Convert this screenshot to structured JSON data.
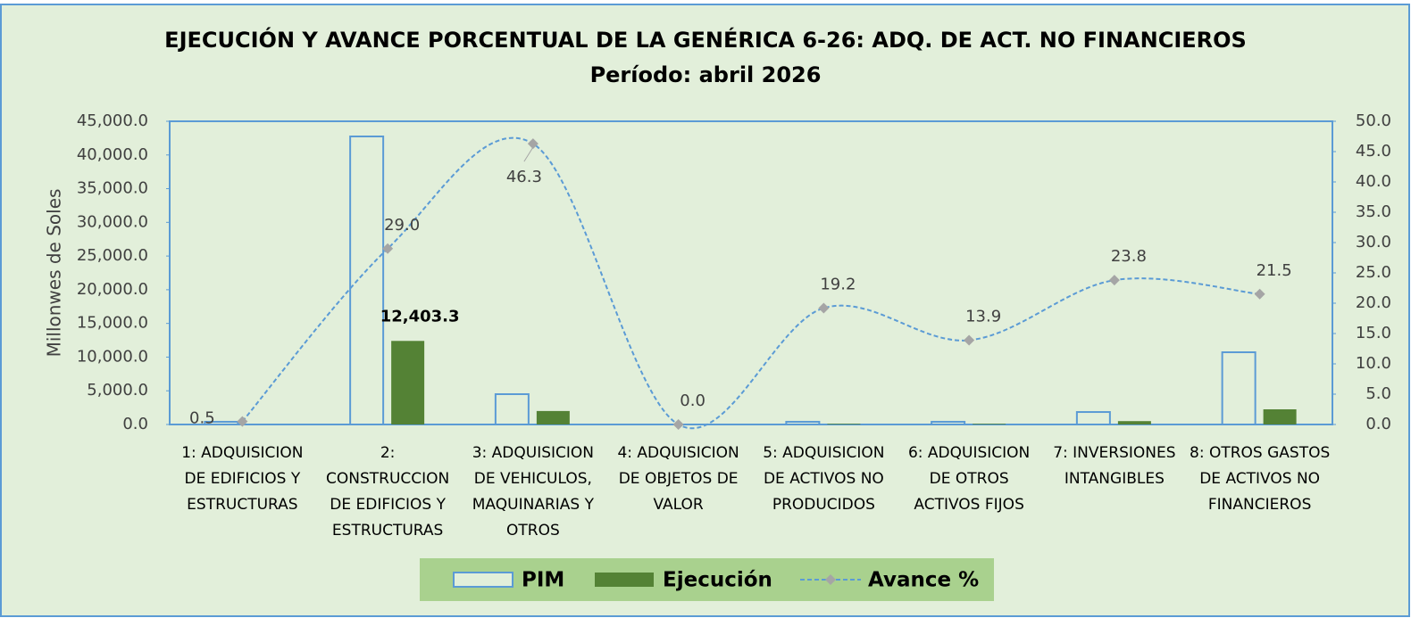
{
  "chart_data": {
    "type": "bar_line",
    "title": "EJECUCIÓN Y AVANCE PORCENTUAL DE LA GENÉRICA 6-26: ADQ. DE ACT. NO FINANCIEROS",
    "subtitle": "Período: abril 2026",
    "ylabel": "Millonwes de Soles",
    "categories": [
      "1: ADQUISICION DE EDIFICIOS Y ESTRUCTURAS",
      "2: CONSTRUCCION DE EDIFICIOS Y ESTRUCTURAS",
      "3: ADQUISICION DE VEHICULOS, MAQUINARIAS Y OTROS",
      "4: ADQUISICION DE OBJETOS DE VALOR",
      "5: ADQUISICION DE ACTIVOS NO PRODUCIDOS",
      "6: ADQUISICION DE OTROS ACTIVOS FIJOS",
      "7: INVERSIONES INTANGIBLES",
      "8: OTROS GASTOS DE ACTIVOS NO FINANCIEROS"
    ],
    "series": [
      {
        "name": "PIM",
        "type": "bar",
        "color": "#e2efda",
        "stroke": "#5b9bd5",
        "values": [
          400,
          42750,
          4500,
          0,
          400,
          400,
          1850,
          10720
        ]
      },
      {
        "name": "Ejecución",
        "type": "bar",
        "color": "#548235",
        "values": [
          2,
          12403.3,
          2000,
          0,
          100,
          100,
          500,
          2250
        ],
        "value_labels": [
          null,
          "12,403.3",
          null,
          null,
          null,
          null,
          null,
          null
        ]
      },
      {
        "name": "Avance %",
        "type": "line",
        "axis": "y2",
        "color": "#5b9bd5",
        "marker_color": "#a5a5a5",
        "values": [
          0.5,
          29.0,
          46.3,
          0.0,
          19.2,
          13.9,
          23.8,
          21.5
        ],
        "value_labels": [
          "0.5",
          "29.0",
          "46.3",
          "0.0",
          "19.2",
          "13.9",
          "23.8",
          "21.5"
        ]
      }
    ],
    "ylim": [
      0,
      45000
    ],
    "yticks": [
      {
        "value": 0,
        "label": "0.0"
      },
      {
        "value": 5000,
        "label": "5,000.0"
      },
      {
        "value": 10000,
        "label": "10,000.0"
      },
      {
        "value": 15000,
        "label": "15,000.0"
      },
      {
        "value": 20000,
        "label": "20,000.0"
      },
      {
        "value": 25000,
        "label": "25,000.0"
      },
      {
        "value": 30000,
        "label": "30,000.0"
      },
      {
        "value": 35000,
        "label": "35,000.0"
      },
      {
        "value": 40000,
        "label": "40,000.0"
      },
      {
        "value": 45000,
        "label": "45,000.0"
      }
    ],
    "y2lim": [
      0,
      50
    ],
    "y2ticks": [
      {
        "value": 0,
        "label": "0.0"
      },
      {
        "value": 5,
        "label": "5.0"
      },
      {
        "value": 10,
        "label": "10.0"
      },
      {
        "value": 15,
        "label": "15.0"
      },
      {
        "value": 20,
        "label": "20.0"
      },
      {
        "value": 25,
        "label": "25.0"
      },
      {
        "value": 30,
        "label": "30.0"
      },
      {
        "value": 35,
        "label": "35.0"
      },
      {
        "value": 40,
        "label": "40.0"
      },
      {
        "value": 45,
        "label": "45.0"
      },
      {
        "value": 50,
        "label": "50.0"
      }
    ],
    "legend": "bottom"
  }
}
